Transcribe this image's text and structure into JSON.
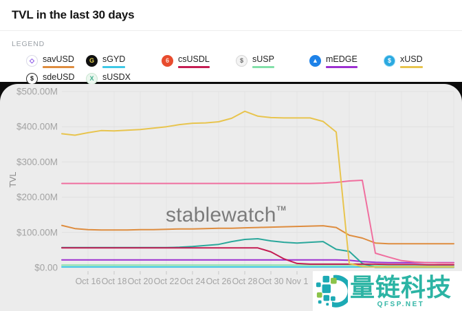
{
  "header": {
    "title": "TVL in the last 30 days"
  },
  "legend": {
    "label": "LEGEND",
    "items": [
      {
        "name": "savUSD",
        "underline": "#de8c3e",
        "icon": {
          "glyph": "◇",
          "bg": "#ffffff",
          "fg": "#7b3fe4",
          "border": "#d9d9e6"
        },
        "icon_name": "savusd-token-icon"
      },
      {
        "name": "sGYD",
        "underline": "#3ec8e6",
        "icon": {
          "glyph": "G",
          "bg": "#111111",
          "fg": "#e8d44d",
          "border": "#111111"
        },
        "icon_name": "sgyd-token-icon"
      },
      {
        "name": "csUSDL",
        "underline": "#c41c52",
        "icon": {
          "glyph": "6",
          "bg": "#e84c2e",
          "fg": "#ffe0d6",
          "border": "#e84c2e"
        },
        "icon_name": "csusdl-token-icon"
      },
      {
        "name": "sUSP",
        "underline": "#82e0a8",
        "icon": {
          "glyph": "$",
          "bg": "#f3f3f3",
          "fg": "#6b6b6b",
          "border": "#d6d6d6"
        },
        "icon_name": "susp-token-icon"
      },
      {
        "name": "mEDGE",
        "underline": "#9c2fd0",
        "icon": {
          "glyph": "▲",
          "bg": "#1e82e8",
          "fg": "#ffffff",
          "border": "#1e82e8"
        },
        "icon_name": "medge-token-icon"
      },
      {
        "name": "xUSD",
        "underline": "#e8c44d",
        "icon": {
          "glyph": "$",
          "bg": "#2ba9e0",
          "fg": "#ffffff",
          "border": "#8fd8f5"
        },
        "icon_name": "xusd-token-icon"
      },
      {
        "name": "sdeUSD",
        "underline": "#2aa79b",
        "icon": {
          "glyph": "$",
          "bg": "#ffffff",
          "fg": "#141414",
          "border": "#2b2b2b"
        },
        "icon_name": "sdeusd-token-icon"
      },
      {
        "name": "sUSDX",
        "underline": "#f06e9e",
        "icon": {
          "glyph": "X",
          "bg": "#ecf7ef",
          "fg": "#3fae8c",
          "border": "#c9e6d1"
        },
        "icon_name": "susdx-token-icon"
      }
    ]
  },
  "chart_data": {
    "type": "line",
    "title": "TVL in the last 30 days",
    "ylabel": "TVL",
    "unit": "$M",
    "ylim": [
      0,
      500
    ],
    "grid": true,
    "watermark": "stablewatch",
    "watermark_sup": "TM",
    "y_ticks": [
      0,
      100,
      200,
      300,
      400,
      500
    ],
    "y_tick_labels": [
      "$0.00",
      "$100.00M",
      "$200.00M",
      "$300.00M",
      "$400.00M",
      "$500.00M"
    ],
    "x": [
      "Oct 14",
      "Oct 15",
      "Oct 16",
      "Oct 17",
      "Oct 18",
      "Oct 19",
      "Oct 20",
      "Oct 21",
      "Oct 22",
      "Oct 23",
      "Oct 24",
      "Oct 25",
      "Oct 26",
      "Oct 27",
      "Oct 28",
      "Oct 29",
      "Oct 30",
      "Oct 31",
      "Nov 1",
      "Nov 2",
      "Nov 3",
      "Nov 4",
      "Nov 5",
      "Nov 6",
      "Nov 7",
      "Nov 8",
      "Nov 9",
      "Nov 10",
      "Nov 11",
      "Nov 12",
      "Nov 13"
    ],
    "x_tick_indices": [
      2,
      4,
      6,
      8,
      10,
      12,
      14,
      16,
      18
    ],
    "x_tick_labels": [
      "Oct 16",
      "Oct 18",
      "Oct 20",
      "Oct 22",
      "Oct 24",
      "Oct 26",
      "Oct 28",
      "Oct 30",
      "Nov 1"
    ],
    "grid_indices": [
      2,
      4,
      6,
      8,
      10,
      12,
      14,
      16,
      18,
      20,
      22,
      24,
      26,
      28,
      30
    ],
    "series": [
      {
        "name": "sGYD",
        "color": "#3ec8e6",
        "values": [
          2,
          2,
          2,
          2,
          2,
          2,
          2,
          2,
          2,
          2,
          2,
          2,
          2,
          2,
          2,
          2,
          2,
          2,
          2,
          2,
          2,
          2,
          2,
          2,
          2,
          2,
          2,
          2,
          2,
          2,
          2
        ]
      },
      {
        "name": "sUSP",
        "color": "#82e0a8",
        "values": [
          7,
          7,
          7,
          7,
          7,
          7,
          7,
          7,
          7,
          7,
          7,
          7,
          7,
          7,
          7,
          7,
          7,
          7,
          7,
          7,
          7,
          7,
          7,
          7,
          6,
          6,
          6,
          6,
          6,
          6,
          6
        ]
      },
      {
        "name": "mEDGE",
        "color": "#9c2fd0",
        "values": [
          22,
          22,
          22,
          22,
          22,
          22,
          22,
          22,
          22,
          22,
          22,
          22,
          22,
          22,
          22,
          22,
          22,
          22,
          22,
          22,
          22,
          22,
          21,
          17,
          15,
          14,
          14,
          14,
          14,
          14,
          14
        ]
      },
      {
        "name": "sdeUSD",
        "color": "#2aa79b",
        "values": [
          57,
          57,
          57,
          57,
          57,
          57,
          57,
          57,
          57,
          58,
          60,
          63,
          66,
          74,
          80,
          82,
          76,
          72,
          70,
          72,
          74,
          52,
          46,
          12,
          1,
          1,
          1,
          1,
          1,
          1,
          1
        ]
      },
      {
        "name": "csUSDL",
        "color": "#c41c52",
        "values": [
          56,
          56,
          56,
          56,
          56,
          56,
          56,
          56,
          56,
          56,
          56,
          56,
          56,
          56,
          56,
          56,
          45,
          25,
          12,
          10,
          10,
          10,
          10,
          10,
          10,
          9,
          9,
          9,
          8,
          8,
          8
        ]
      },
      {
        "name": "savUSD",
        "color": "#de8c3e",
        "values": [
          120,
          111,
          108,
          107,
          107,
          107,
          108,
          108,
          109,
          110,
          110,
          111,
          112,
          112,
          113,
          114,
          115,
          116,
          117,
          118,
          119,
          114,
          92,
          84,
          70,
          68,
          68,
          68,
          68,
          68,
          68
        ]
      },
      {
        "name": "sUSDX",
        "color": "#f06e9e",
        "values": [
          239,
          239,
          239,
          239,
          239,
          239,
          239,
          239,
          239,
          239,
          239,
          239,
          239,
          239,
          239,
          239,
          239,
          239,
          239,
          239,
          240,
          242,
          246,
          248,
          41,
          30,
          20,
          16,
          14,
          13,
          13
        ]
      },
      {
        "name": "xUSD",
        "color": "#e8c44d",
        "values": [
          380,
          376,
          383,
          389,
          388,
          390,
          392,
          396,
          400,
          406,
          410,
          411,
          414,
          424,
          444,
          430,
          426,
          425,
          425,
          425,
          415,
          385,
          12,
          3,
          2,
          2,
          2,
          2,
          2,
          2,
          2
        ]
      }
    ]
  },
  "overlay_watermark": {
    "cn_text": "量链科技",
    "en_text": "QFSP.NET",
    "teal": "#2cb4a4",
    "lime": "#8bc34a"
  }
}
